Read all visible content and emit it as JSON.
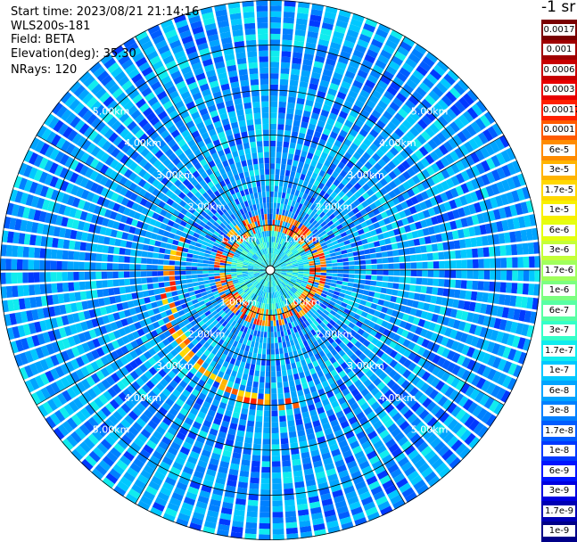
{
  "info": {
    "start_time_label": "Start time:",
    "start_time": "2023/08/21 21:14:16",
    "instrument": "WLS200s-181",
    "field_label": "Field:",
    "field": "BETA",
    "elevation_label": "Elevation(deg):",
    "elevation": "35.30",
    "nrays_label": "NRays:",
    "nrays": "120"
  },
  "colorbar": {
    "unit": "-1 sr",
    "levels": [
      "0.0017",
      "0.001",
      "0.0006",
      "0.0003",
      "0.00017",
      "0.0001",
      "6e-5",
      "3e-5",
      "1.7e-5",
      "1e-5",
      "6e-6",
      "3e-6",
      "1.7e-6",
      "1e-6",
      "6e-7",
      "3e-7",
      "1.7e-7",
      "1e-7",
      "6e-8",
      "3e-8",
      "1.7e-8",
      "1e-8",
      "6e-9",
      "3e-9",
      "1.7e-9",
      "1e-9"
    ],
    "colors": [
      "#7a0000",
      "#a00000",
      "#c80000",
      "#e80000",
      "#ff2000",
      "#ff5a00",
      "#ff8c00",
      "#ffb400",
      "#ffd800",
      "#f8f000",
      "#e4ff10",
      "#c4ff38",
      "#a0ff5c",
      "#7cff80",
      "#58ffa4",
      "#34ffc8",
      "#10ecee",
      "#00c8ff",
      "#00a4ff",
      "#0080ff",
      "#005cff",
      "#0038ff",
      "#0014ff",
      "#0000e0",
      "#0000b4",
      "#000088"
    ]
  },
  "chart_data": {
    "type": "heatmap",
    "projection": "polar",
    "title": "",
    "range_rings": [
      "1.00km",
      "2.00km",
      "3.00km",
      "4.00km",
      "5.00km"
    ],
    "rings_km": [
      1,
      2,
      3,
      4,
      5
    ],
    "max_range_km": 6,
    "nrays": 120,
    "field": "BETA",
    "scale": "log",
    "background_level": "3e-8",
    "features": [
      {
        "name": "cloud ring",
        "range_km_min": 0.9,
        "range_km_max": 1.3,
        "level": "3e-5"
      },
      {
        "name": "cloud arc south-west",
        "range_km_min": 1.9,
        "range_km_max": 3.2,
        "level": "3e-5"
      }
    ]
  }
}
